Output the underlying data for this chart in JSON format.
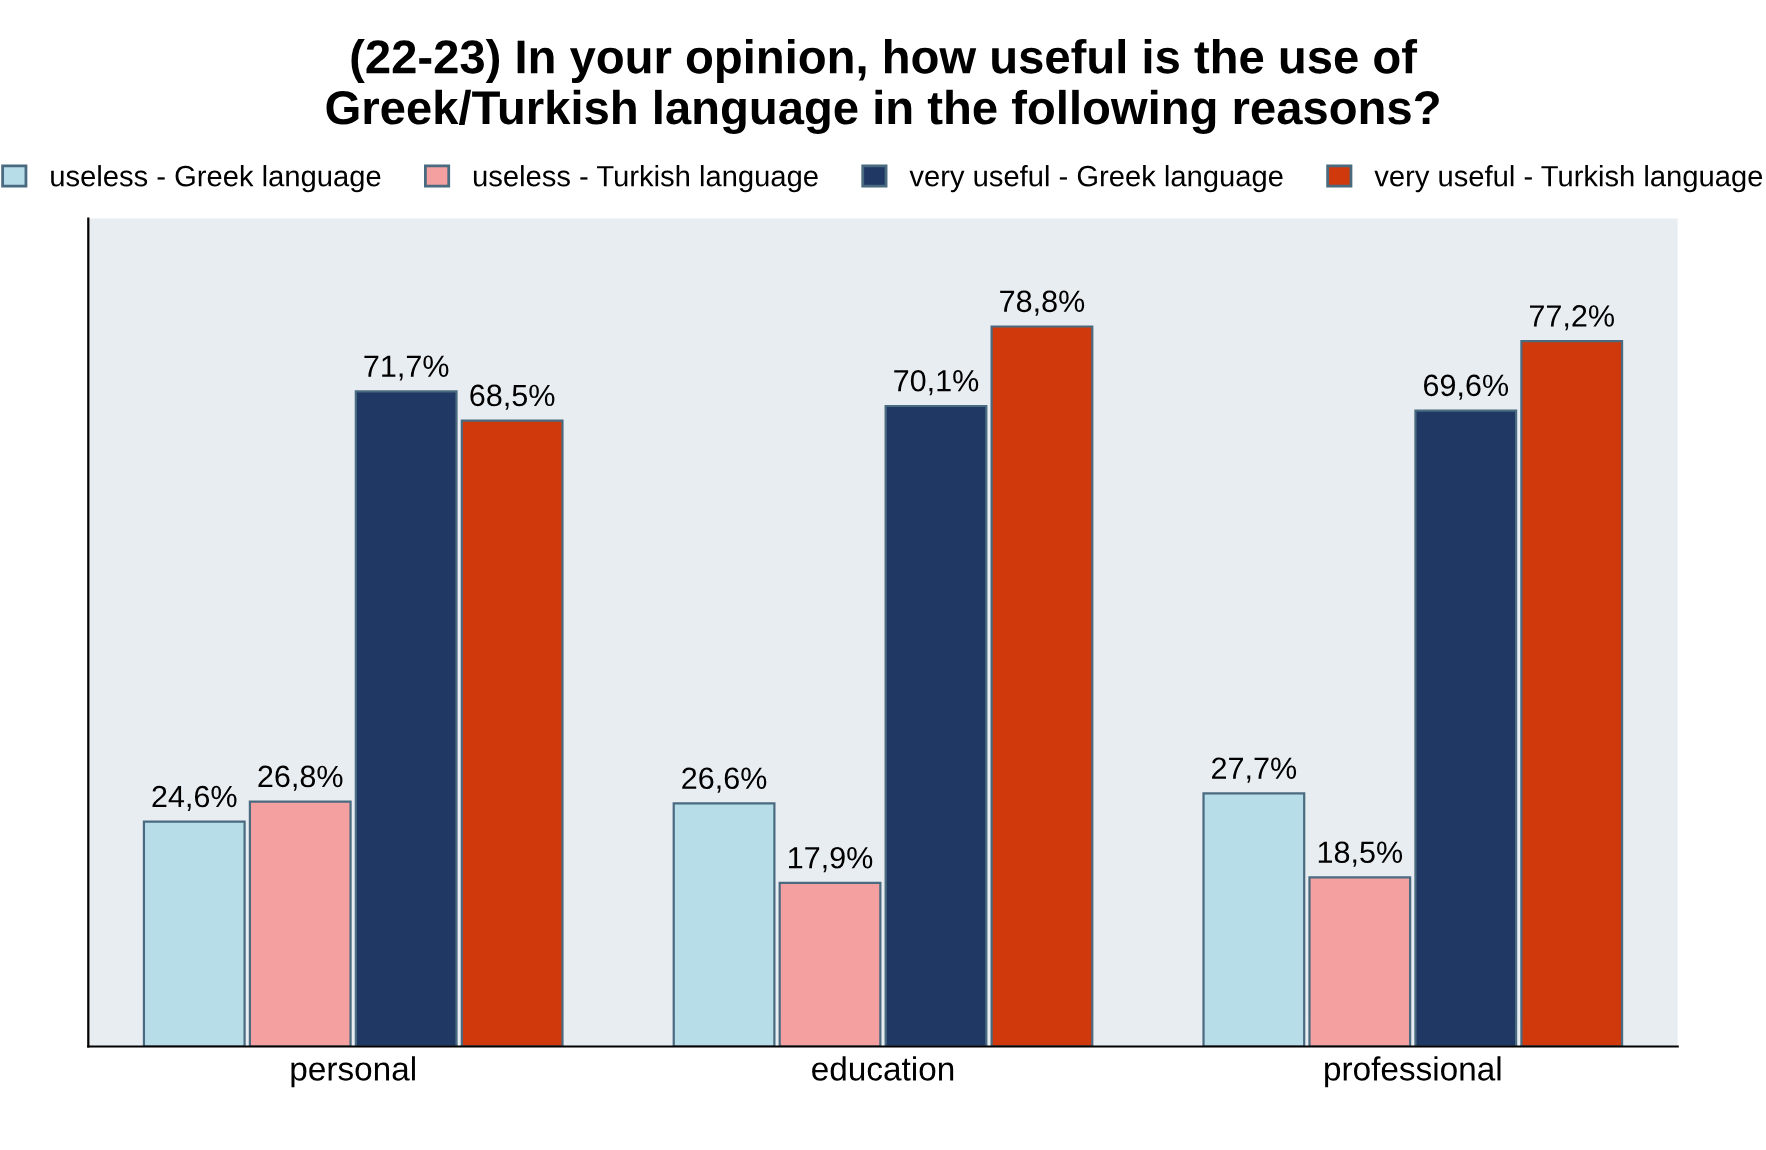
{
  "chart_data": {
    "type": "bar",
    "title": "(22-23) In your opinion, how useful is the use of\nGreek/Turkish language in the following reasons?",
    "categories": [
      "personal",
      "education",
      "professional"
    ],
    "series": [
      {
        "name": "useless - Greek language",
        "color": "#b7dde8",
        "values": [
          24.6,
          26.6,
          27.7
        ],
        "value_labels": [
          "24,6%",
          "26,6%",
          "27,7%"
        ]
      },
      {
        "name": "useless - Turkish language",
        "color": "#f4a0a0",
        "values": [
          26.8,
          17.9,
          18.5
        ],
        "value_labels": [
          "26,8%",
          "17,9%",
          "18,5%"
        ]
      },
      {
        "name": "very useful - Greek language",
        "color": "#1f3864",
        "values": [
          71.7,
          70.1,
          69.6
        ],
        "value_labels": [
          "71,7%",
          "70,1%",
          "69,6%"
        ]
      },
      {
        "name": "very useful - Turkish language",
        "color": "#d0390c",
        "values": [
          68.5,
          78.8,
          77.2
        ],
        "value_labels": [
          "68,5%",
          "78,8%",
          "77,2%"
        ]
      }
    ],
    "legend": "top",
    "grid": false
  }
}
